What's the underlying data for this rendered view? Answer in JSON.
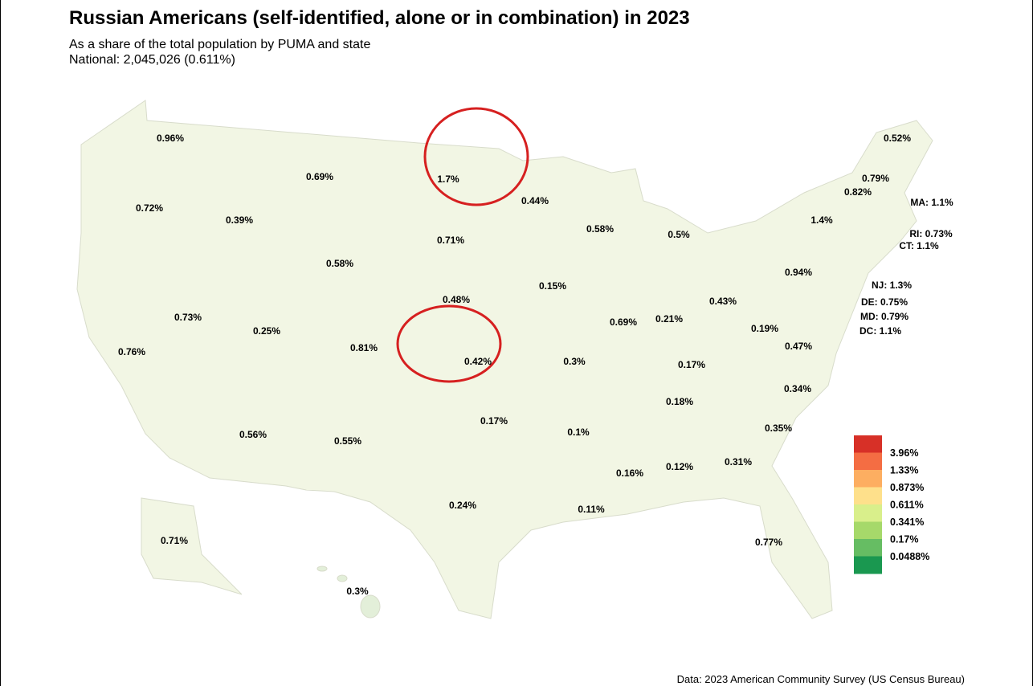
{
  "title": "Russian Americans (self-identified, alone or in combination) in 2023",
  "subtitle": "As a share of the total population by PUMA and state",
  "national": "National: 2,045,026 (0.611%)",
  "states": [
    "0.96%",
    "0.72%",
    "0.39%",
    "0.69%",
    "1.7%",
    "0.44%",
    "0.71%",
    "0.58%",
    "0.73%",
    "0.25%",
    "0.76%",
    "0.81%",
    "0.48%",
    "0.42%",
    "0.15%",
    "0.58%",
    "0.5%",
    "0.69%",
    "0.21%",
    "0.43%",
    "0.19%",
    "0.3%",
    "0.17%",
    "0.47%",
    "0.18%",
    "0.34%",
    "0.17%",
    "0.1%",
    "0.35%",
    "0.56%",
    "0.55%",
    "0.16%",
    "0.12%",
    "0.31%",
    "0.24%",
    "0.11%",
    "0.77%",
    "0.71%",
    "0.3%",
    "0.52%",
    "0.79%",
    "0.82%",
    "1.4%",
    "0.94%",
    "MA: 1.1%",
    "RI: 0.73%",
    "CT: 1.1%",
    "NJ: 1.3%",
    "DE: 0.75%",
    "MD: 0.79%",
    "DC: 1.1%"
  ],
  "legend": {
    "colors": [
      "#d73027",
      "#f46d43",
      "#fdae61",
      "#fee08b",
      "#d9ef8b",
      "#a6d96a",
      "#66bd63",
      "#1a9850"
    ],
    "labels": [
      "3.96%",
      "1.33%",
      "0.873%",
      "0.611%",
      "0.341%",
      "0.17%",
      "0.0488%"
    ]
  },
  "source": "Data: 2023 American Community Survey (US Census Bureau)"
}
